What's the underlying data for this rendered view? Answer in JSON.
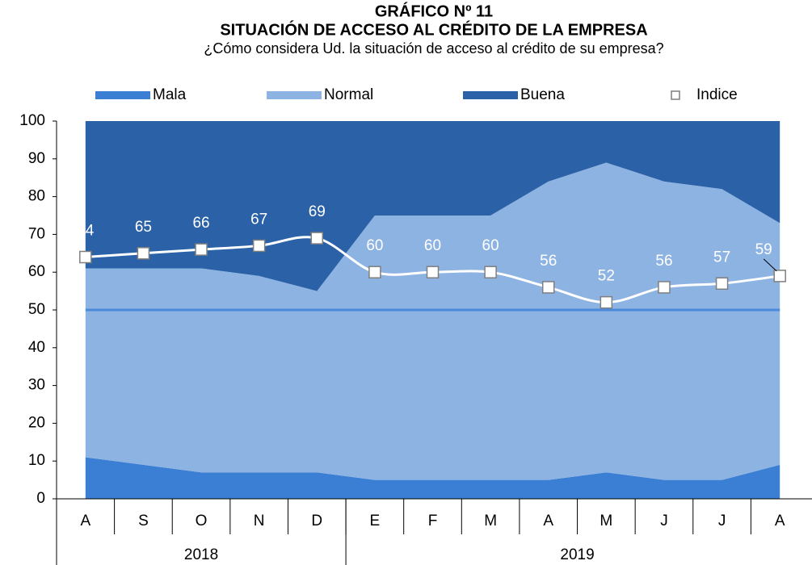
{
  "chart_data": {
    "type": "stacked_area_line",
    "title": "GRÁFICO Nº 11",
    "subtitle": "SITUACIÓN DE ACCESO AL CRÉDITO DE LA EMPRESA",
    "question": "¿Cómo considera Ud. la situación de acceso al crédito de su empresa?",
    "categories": [
      "A",
      "S",
      "O",
      "N",
      "D",
      "E",
      "F",
      "M",
      "A",
      "M",
      "J",
      "J",
      "A"
    ],
    "groups": [
      {
        "label": "2018",
        "count": 5
      },
      {
        "label": "2019",
        "count": 8
      }
    ],
    "series": [
      {
        "name": "Mala",
        "color": "#3b7fd4",
        "stack": true,
        "values": [
          11,
          9,
          7,
          7,
          7,
          5,
          5,
          5,
          5,
          7,
          5,
          5,
          9
        ]
      },
      {
        "name": "Normal",
        "color": "#8db3e2",
        "stack": true,
        "values": [
          50,
          52,
          54,
          52,
          48,
          70,
          70,
          70,
          79,
          82,
          79,
          77,
          64
        ]
      },
      {
        "name": "Buena",
        "color": "#2a61a7",
        "stack": true,
        "values": [
          39,
          39,
          39,
          41,
          45,
          25,
          25,
          25,
          16,
          11,
          16,
          18,
          27
        ]
      },
      {
        "name": "Indice",
        "color": "#ffffff",
        "stack": false,
        "values": [
          64,
          65,
          66,
          67,
          69,
          60,
          60,
          60,
          56,
          52,
          56,
          57,
          59
        ]
      }
    ],
    "reference_line": {
      "value": 50,
      "color": "#4a8bd9"
    },
    "ylim": [
      0,
      100
    ],
    "yticks": [
      0,
      10,
      20,
      30,
      40,
      50,
      60,
      70,
      80,
      90,
      100
    ]
  }
}
